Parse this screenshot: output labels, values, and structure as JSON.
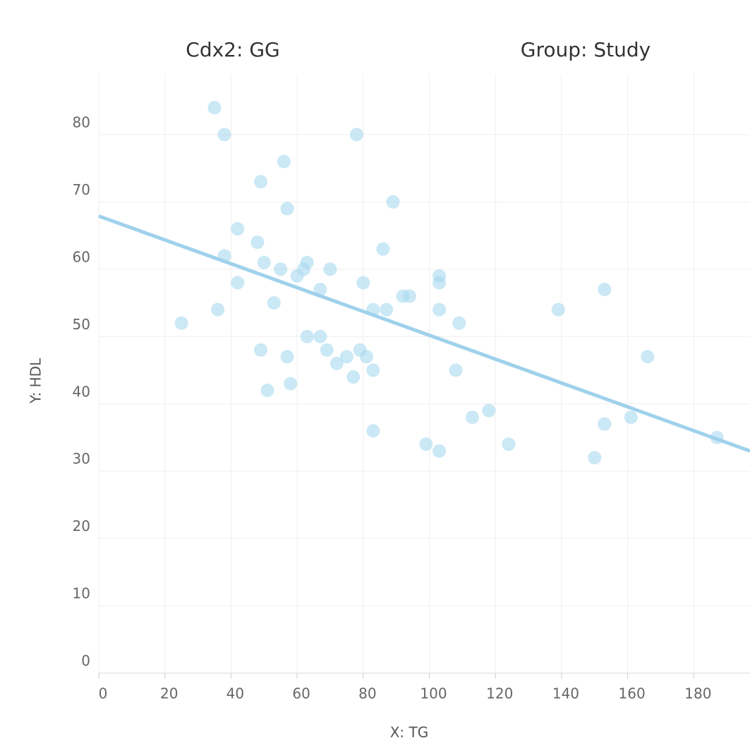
{
  "chart_data": {
    "type": "scatter",
    "headers": [
      "Cdx2: GG",
      "Group: Study"
    ],
    "x_label": "X: TG",
    "y_label": "Y: HDL",
    "x": [
      35,
      38,
      78,
      56,
      49,
      57,
      89,
      42,
      48,
      86,
      38,
      50,
      63,
      55,
      62,
      70,
      60,
      103,
      42,
      80,
      103,
      67,
      153,
      92,
      94,
      53,
      36,
      83,
      87,
      103,
      139,
      25,
      109,
      63,
      67,
      49,
      69,
      79,
      57,
      75,
      81,
      166,
      72,
      83,
      108,
      77,
      58,
      51,
      118,
      113,
      161,
      153,
      83,
      187,
      99,
      124,
      103,
      150
    ],
    "values": [
      84,
      80,
      80,
      76,
      73,
      69,
      70,
      66,
      64,
      63,
      62,
      61,
      61,
      60,
      60,
      60,
      59,
      59,
      58,
      58,
      58,
      57,
      57,
      56,
      56,
      55,
      54,
      54,
      54,
      54,
      54,
      52,
      52,
      50,
      50,
      48,
      48,
      48,
      47,
      47,
      47,
      47,
      46,
      45,
      45,
      44,
      43,
      42,
      39,
      38,
      38,
      37,
      36,
      35,
      34,
      34,
      33,
      32
    ],
    "color": "#a6d8ee",
    "trendline": {
      "x": [
        0,
        197
      ],
      "y": [
        67.9,
        33.0
      ],
      "color": "#9fd1ec"
    },
    "xlim": [
      0,
      197
    ],
    "xticks": [
      0,
      20,
      40,
      60,
      80,
      100,
      120,
      140,
      160,
      180
    ],
    "ylim": [
      0,
      89
    ],
    "yticks": [
      0,
      10,
      20,
      30,
      40,
      50,
      60,
      70,
      80
    ],
    "grid": true
  }
}
